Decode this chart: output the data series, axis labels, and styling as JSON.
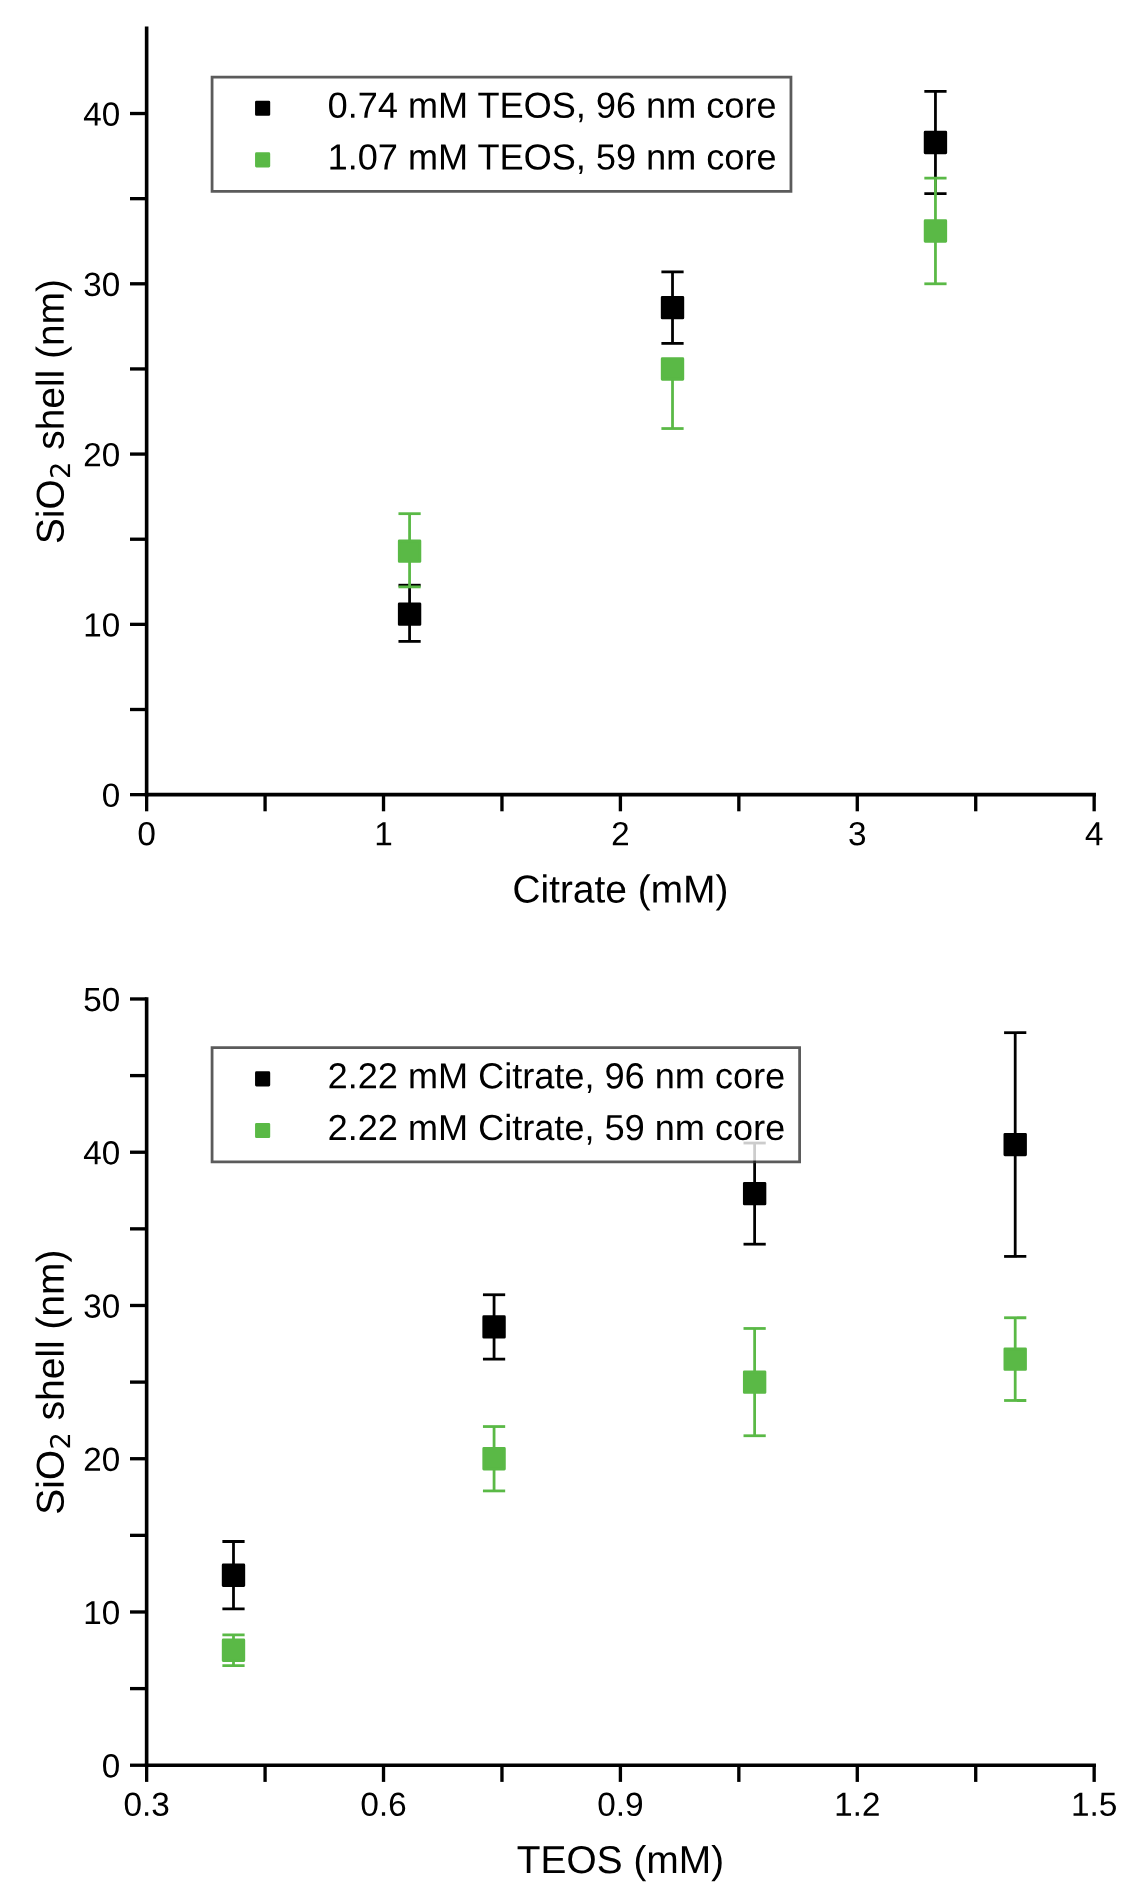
{
  "chart_data": [
    {
      "type": "scatter",
      "xlabel": "Citrate (mM)",
      "ylabel": "SiO$_{2}$ shell (nm)",
      "xlim": [
        0,
        4
      ],
      "ylim": [
        0,
        45
      ],
      "xticks": [
        0,
        {
          "value": 0.5,
          "label": null
        },
        1,
        {
          "value": 1.5,
          "label": null
        },
        2,
        {
          "value": 2.5,
          "label": null
        },
        3,
        {
          "value": 3.5,
          "label": null
        },
        4
      ],
      "yticks": [
        0,
        {
          "value": 5,
          "label": null
        },
        10,
        {
          "value": 15,
          "label": null
        },
        20,
        {
          "value": 25,
          "label": null
        },
        30,
        {
          "value": 35,
          "label": null
        },
        40
      ],
      "marker": "square",
      "legend": "top left",
      "grid": false,
      "x": [
        1.11,
        2.22,
        3.33
      ],
      "series": [
        {
          "name": "0.74 mM TEOS, 96 nm core",
          "color": "#000000",
          "values": [
            10.6,
            28.6,
            38.3
          ],
          "errors": [
            [
              9.0,
              12.3
            ],
            [
              26.5,
              30.7
            ],
            [
              35.3,
              41.3
            ]
          ]
        },
        {
          "name": "1.07 mM TEOS, 59 nm core",
          "color": "#5ab946",
          "values": [
            14.3,
            25.0,
            33.1
          ],
          "errors": [
            [
              12.2,
              16.5
            ],
            [
              21.5,
              25.0
            ],
            [
              30.0,
              36.2
            ]
          ]
        }
      ]
    },
    {
      "type": "scatter",
      "xlabel": "TEOS (mM)",
      "ylabel": "SiO$_{2}$ shell (nm)",
      "xlim": [
        0.3,
        1.5
      ],
      "ylim": [
        0,
        50
      ],
      "xticks": [
        0.3,
        {
          "value": 0.45,
          "label": null
        },
        0.6,
        {
          "value": 0.75,
          "label": null
        },
        0.9,
        {
          "value": 1.05,
          "label": null
        },
        1.2,
        {
          "value": 1.35,
          "label": null
        },
        1.5
      ],
      "yticks": [
        0,
        {
          "value": 5,
          "label": null
        },
        10,
        {
          "value": 15,
          "label": null
        },
        20,
        {
          "value": 25,
          "label": null
        },
        30,
        {
          "value": 35,
          "label": null
        },
        40,
        {
          "value": 45,
          "label": null
        },
        50
      ],
      "marker": "square",
      "legend": "top left",
      "grid": false,
      "x": [
        0.41,
        0.74,
        1.07,
        1.4
      ],
      "series": [
        {
          "name": "2.22 mM Citrate, 96 nm core",
          "color": "#000000",
          "values": [
            12.4,
            28.6,
            37.3,
            40.5
          ],
          "errors": [
            [
              10.2,
              14.6
            ],
            [
              26.5,
              30.7
            ],
            [
              34.0,
              40.6
            ],
            [
              33.2,
              47.8
            ]
          ]
        },
        {
          "name": "2.22 mM Citrate, 59 nm core",
          "color": "#5ab946",
          "values": [
            7.5,
            20.0,
            25.0,
            26.5
          ],
          "errors": [
            [
              6.5,
              8.5
            ],
            [
              17.9,
              22.1
            ],
            [
              21.5,
              28.5
            ],
            [
              23.8,
              29.2
            ]
          ]
        }
      ]
    }
  ]
}
